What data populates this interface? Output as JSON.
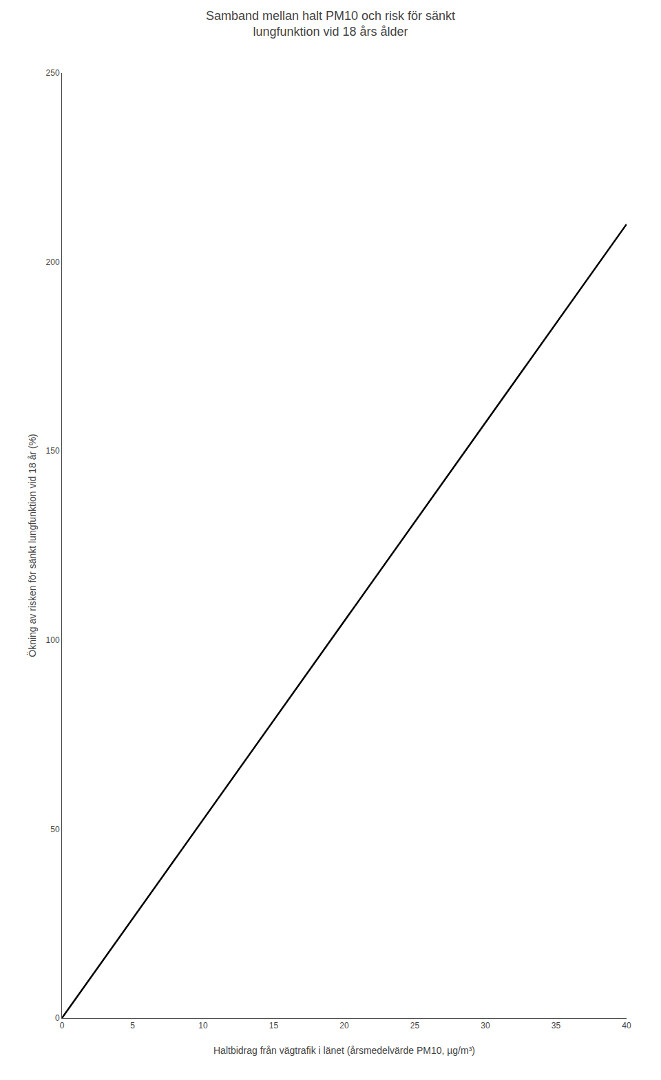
{
  "chart_data": {
    "type": "line",
    "title": "Samband mellan halt PM10 och risk för sänkt\nlungfunktion vid 18 års ålder",
    "x_label": "Haltbidrag från vägtrafik i länet (årsmedelvärde PM10, µg/m³)",
    "y_label": "Ökning av risken för sänkt lungfunktion vid 18 år (%)",
    "x": [
      0,
      40
    ],
    "values": [
      0,
      210
    ],
    "color": "#000000",
    "xlim": [
      0,
      40
    ],
    "ylim": [
      0,
      250
    ],
    "xticks": [
      0,
      5,
      10,
      15,
      20,
      25,
      30,
      35,
      40
    ],
    "yticks": [
      0,
      50,
      100,
      150,
      200,
      250
    ],
    "grid": false
  }
}
